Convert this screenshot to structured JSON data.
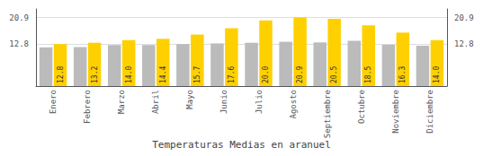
{
  "chart_data": {
    "type": "bar",
    "title": "Temperaturas Medias en aranuel",
    "categories": [
      "Enero",
      "Febrero",
      "Marzo",
      "Abril",
      "Mayo",
      "Junio",
      "Julio",
      "Agosto",
      "Septiembre",
      "Octubre",
      "Noviembre",
      "Diciembre"
    ],
    "series": [
      {
        "color": "#BBBBBB",
        "values": [
          11.8,
          11.9,
          12.5,
          12.5,
          12.8,
          13.0,
          13.2,
          13.5,
          13.3,
          13.8,
          12.6,
          12.3
        ]
      },
      {
        "color": "#FFD000",
        "values": [
          12.8,
          13.2,
          14.0,
          14.4,
          15.7,
          17.6,
          20.0,
          20.9,
          20.5,
          18.5,
          16.3,
          14.0
        ],
        "data_labels": true,
        "value_labels": [
          "12.8",
          "13.2",
          "14.0",
          "14.4",
          "15.7",
          "17.6",
          "20.0",
          "20.9",
          "20.5",
          "18.5",
          "16.3",
          "14.0"
        ]
      }
    ],
    "ylim": [
      0,
      23.5
    ],
    "yticks": [
      12.8,
      20.9
    ],
    "y2lim": [
      0,
      23.5
    ],
    "y2ticks": [
      12.8,
      20.9
    ],
    "grid": true
  }
}
